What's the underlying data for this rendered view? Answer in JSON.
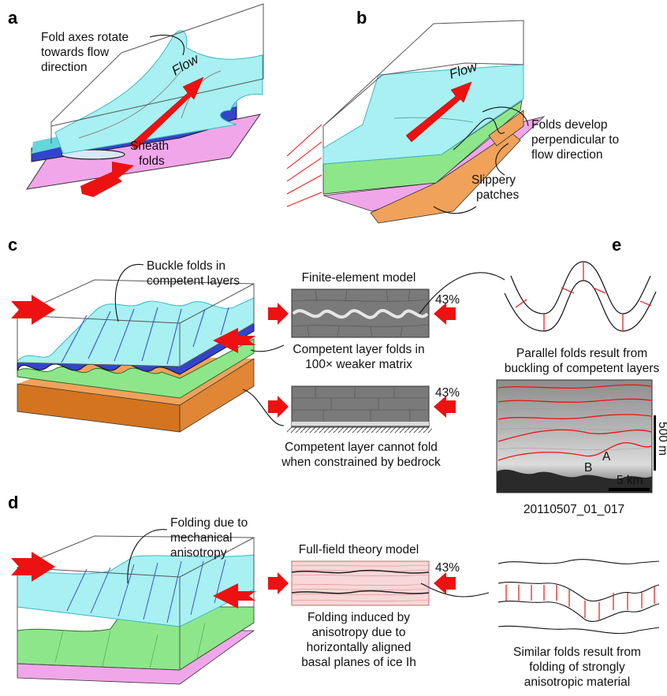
{
  "panels": {
    "a": {
      "letter": "a",
      "annotation_1": "Fold axes rotate",
      "annotation_2": "towards flow",
      "annotation_3": "direction",
      "flow_label": "Flow",
      "sheath_1": "Sheath",
      "sheath_2": "folds"
    },
    "b": {
      "letter": "b",
      "flow_label": "Flow",
      "folds_1": "Folds develop",
      "folds_2": "perpendicular to",
      "folds_3": "flow direction",
      "slip_1": "Slippery",
      "slip_2": "patches"
    },
    "c": {
      "letter": "c",
      "buckle_1": "Buckle folds in",
      "buckle_2": "competent layers",
      "fem_title": "Finite-element model",
      "pct_top": "43%",
      "fold_cap_1": "Competent layer folds in",
      "fold_cap_2": "100× weaker matrix",
      "pct_bottom": "43%",
      "nofold_cap_1": "Competent layer cannot fold",
      "nofold_cap_2": "when constrained by bedrock"
    },
    "d": {
      "letter": "d",
      "fold_1": "Folding due to",
      "fold_2": "mechanical",
      "fold_3": "anisotropy",
      "ff_title": "Full-field theory model",
      "pct": "43%",
      "cap_1": "Folding induced by",
      "cap_2": "anisotropy due to",
      "cap_3": "horizontally aligned",
      "cap_4": "basal planes of ice Ih"
    },
    "e": {
      "letter": "e",
      "parallel_1": "Parallel folds result from",
      "parallel_2": "buckling of competent layers",
      "radar_A": "A",
      "radar_B": "B",
      "scale_vertical": "500 m",
      "scale_horizontal": "5 km",
      "radar_id": "20110507_01_017",
      "similar_1": "Similar folds result from",
      "similar_2": "folding of strongly",
      "similar_3": "anisotropic material"
    }
  },
  "colors": {
    "cyan": "#a8f0f2",
    "cyan_edge": "#3bb7c4",
    "blue_layer": "#3344cc",
    "green": "#8ee68a",
    "orange": "#f0a25a",
    "orange_dark": "#d4741e",
    "pink": "#f2a6ea",
    "red_arrow": "#ee1111",
    "fem_gray": "#7a7a7a"
  }
}
